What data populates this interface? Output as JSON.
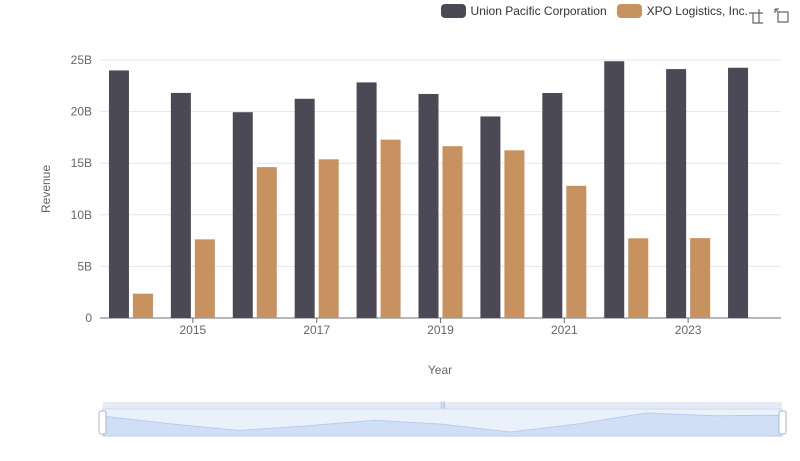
{
  "colors": {
    "union_pacific": "#4a4955",
    "xpo": "#c89160"
  },
  "toolbox": {
    "icons": [
      "zoom-icon",
      "restore-icon"
    ]
  },
  "chart_data": {
    "type": "bar",
    "title": "",
    "xlabel": "Year",
    "ylabel": "Revenue",
    "ylim": [
      0,
      25000000000
    ],
    "y_ticks": [
      0,
      5000000000,
      10000000000,
      15000000000,
      20000000000,
      25000000000
    ],
    "y_tick_labels": [
      "0",
      "5B",
      "10B",
      "15B",
      "20B",
      "25B"
    ],
    "categories": [
      "2014",
      "2015",
      "2016",
      "2017",
      "2018",
      "2019",
      "2020",
      "2021",
      "2022",
      "2023",
      "2024"
    ],
    "x_tick_labels": [
      "2015",
      "2017",
      "2019",
      "2021",
      "2023"
    ],
    "legend_position": "top-right",
    "grid": true,
    "series": [
      {
        "name": "Union Pacific Corporation",
        "values": [
          23990000000,
          21810000000,
          19940000000,
          21240000000,
          22830000000,
          21710000000,
          19530000000,
          21800000000,
          24880000000,
          24120000000,
          24250000000
        ]
      },
      {
        "name": "XPO Logistics, Inc.",
        "values": [
          2360000000,
          7620000000,
          14620000000,
          15380000000,
          17280000000,
          16650000000,
          16250000000,
          12810000000,
          7720000000,
          7740000000,
          null
        ]
      }
    ]
  }
}
